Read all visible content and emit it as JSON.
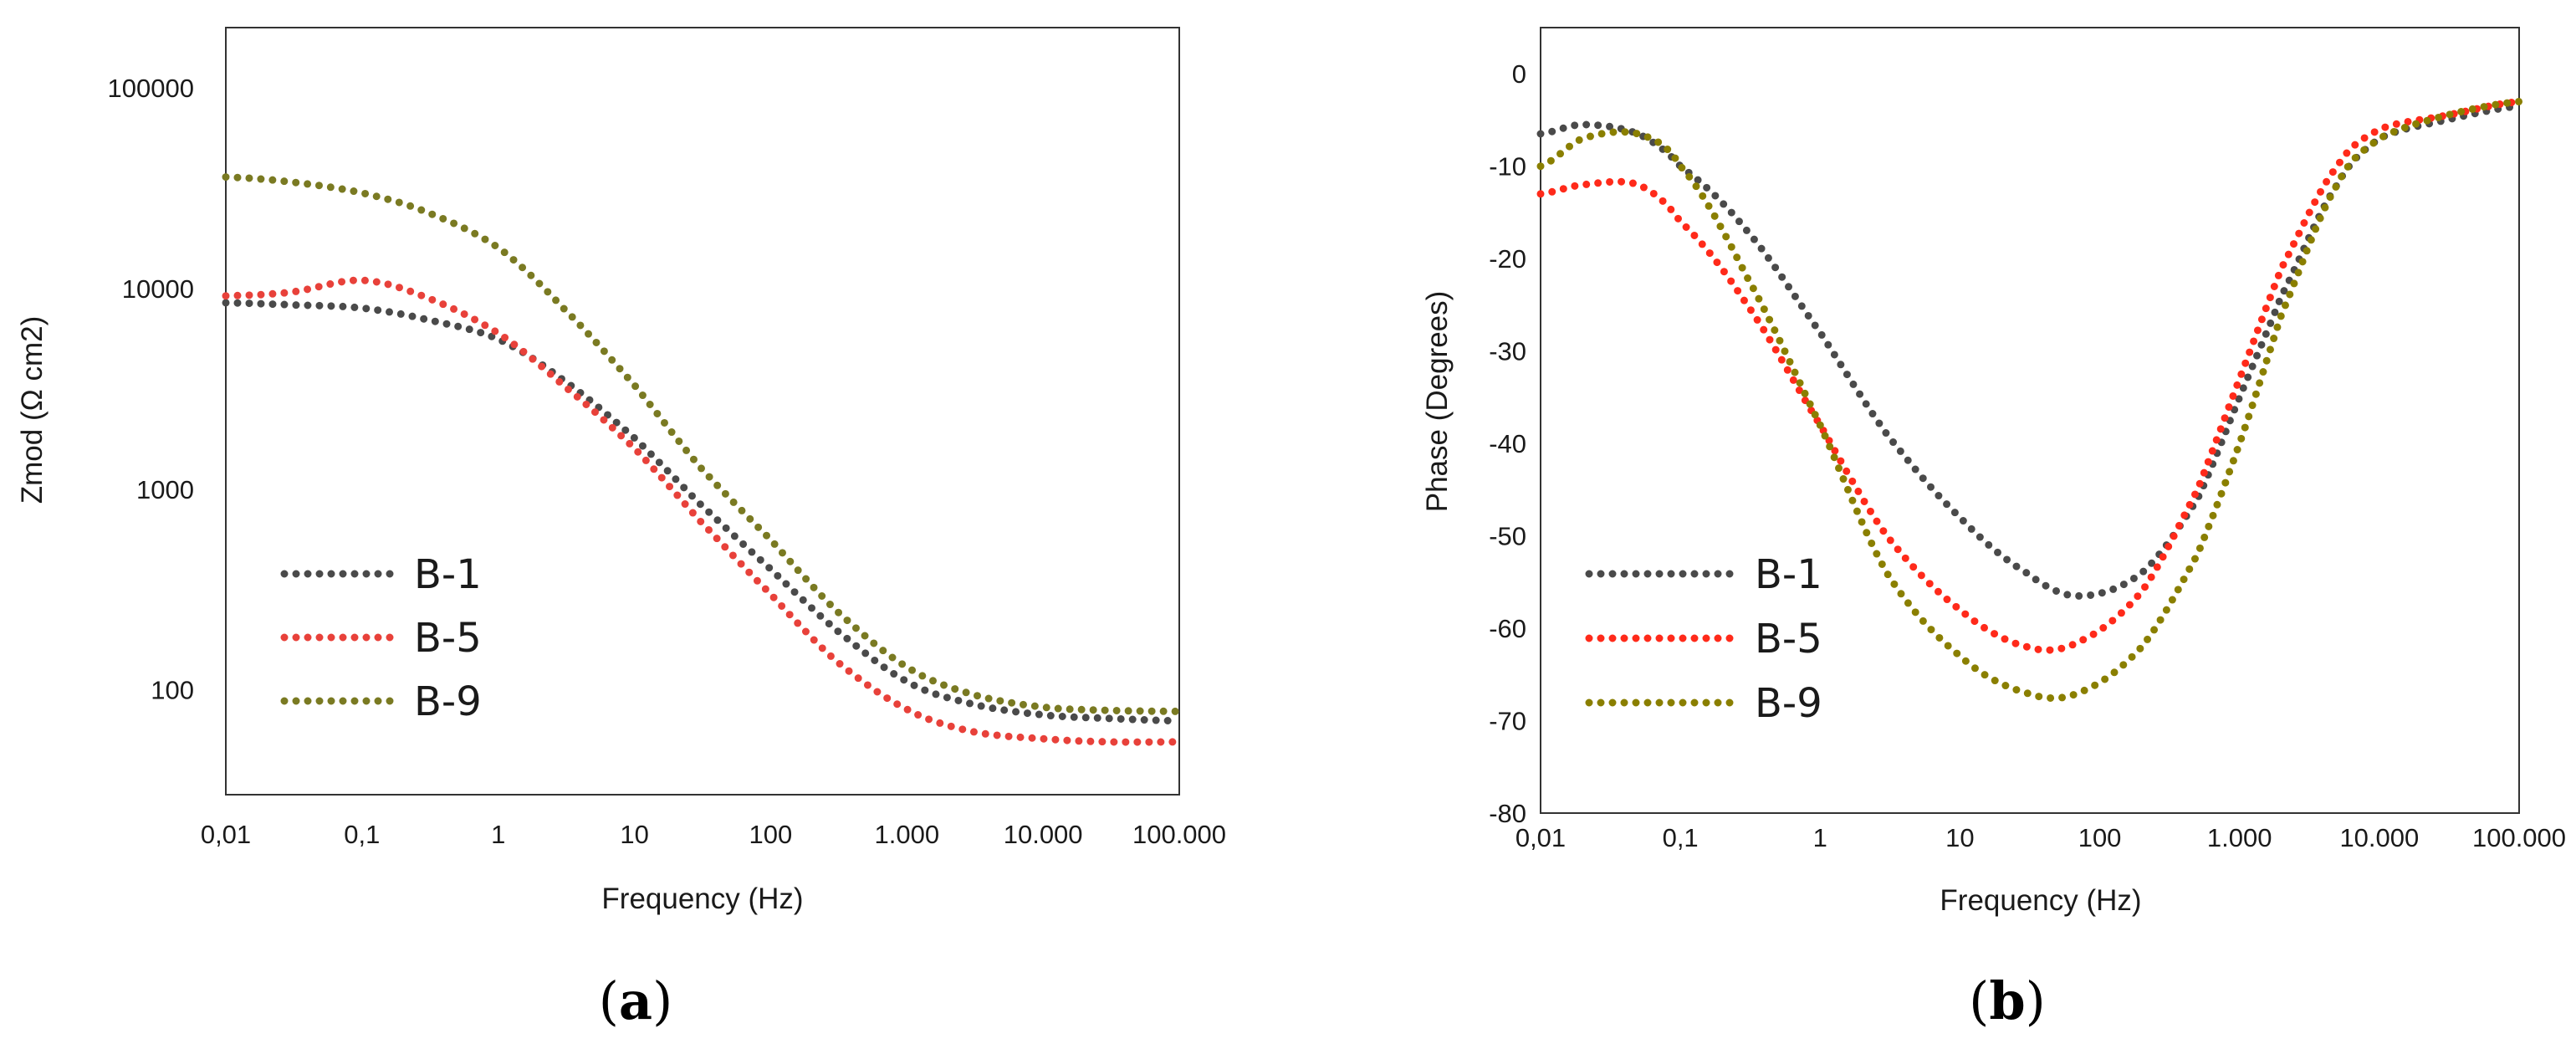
{
  "chart_data": [
    {
      "type": "line",
      "panel_label": "(a)",
      "panel_letter": "a",
      "xlabel": "Frequency (Hz)",
      "ylabel": "Zmod (Ω cm2)",
      "x_scale": "log",
      "y_scale": "log",
      "xlim": [
        0.01,
        100000
      ],
      "ylim": [
        30,
        200000
      ],
      "x_ticks": [
        {
          "value": 0.01,
          "label": "0,01"
        },
        {
          "value": 0.1,
          "label": "0,1"
        },
        {
          "value": 1,
          "label": "1"
        },
        {
          "value": 10,
          "label": "10"
        },
        {
          "value": 100,
          "label": "100"
        },
        {
          "value": 1000,
          "label": "1.000"
        },
        {
          "value": 10000,
          "label": "10.000"
        },
        {
          "value": 100000,
          "label": "100.000"
        }
      ],
      "y_ticks": [
        {
          "value": 100,
          "label": "100"
        },
        {
          "value": 1000,
          "label": "1000"
        },
        {
          "value": 10000,
          "label": "10000"
        },
        {
          "value": 100000,
          "label": "100000"
        }
      ],
      "grid": false,
      "legend_position": "bottom-left",
      "series": [
        {
          "name": "B-1",
          "color": "#4a4a4a",
          "x": [
            0.01,
            0.03,
            0.1,
            0.3,
            1,
            3,
            10,
            30,
            100,
            300,
            1000,
            3000,
            10000,
            30000,
            100000
          ],
          "values": [
            8500,
            8300,
            8000,
            7000,
            5600,
            3500,
            1800,
            850,
            400,
            200,
            110,
            85,
            75,
            72,
            70
          ]
        },
        {
          "name": "B-5",
          "color": "#e8413a",
          "x": [
            0.01,
            0.03,
            0.1,
            0.3,
            1,
            3,
            10,
            30,
            100,
            300,
            1000,
            3000,
            10000,
            30000,
            100000
          ],
          "values": [
            9200,
            9600,
            11000,
            9000,
            6000,
            3300,
            1600,
            700,
            300,
            140,
            80,
            62,
            57,
            55,
            55
          ]
        },
        {
          "name": "B-9",
          "color": "#7a7a22",
          "x": [
            0.01,
            0.03,
            0.1,
            0.3,
            1,
            3,
            10,
            30,
            100,
            300,
            1000,
            3000,
            10000,
            30000,
            100000
          ],
          "values": [
            36000,
            34000,
            30000,
            24000,
            16000,
            8000,
            3300,
            1300,
            560,
            250,
            130,
            95,
            82,
            79,
            78
          ]
        }
      ]
    },
    {
      "type": "line",
      "panel_label": "(b)",
      "panel_letter": "b",
      "xlabel": "Frequency (Hz)",
      "ylabel": "Phase (Degrees)",
      "x_scale": "log",
      "y_scale": "linear",
      "xlim": [
        0.01,
        100000
      ],
      "ylim": [
        -80,
        5
      ],
      "x_ticks": [
        {
          "value": 0.01,
          "label": "0,01"
        },
        {
          "value": 0.1,
          "label": "0,1"
        },
        {
          "value": 1,
          "label": "1"
        },
        {
          "value": 10,
          "label": "10"
        },
        {
          "value": 100,
          "label": "100"
        },
        {
          "value": 1000,
          "label": "1.000"
        },
        {
          "value": 10000,
          "label": "10.000"
        },
        {
          "value": 100000,
          "label": "100.000"
        }
      ],
      "y_ticks": [
        {
          "value": 0,
          "label": "0"
        },
        {
          "value": -10,
          "label": "-10"
        },
        {
          "value": -20,
          "label": "-20"
        },
        {
          "value": -30,
          "label": "-30"
        },
        {
          "value": -40,
          "label": "-40"
        },
        {
          "value": -50,
          "label": "-50"
        },
        {
          "value": -60,
          "label": "-60"
        },
        {
          "value": -70,
          "label": "-70"
        },
        {
          "value": -80,
          "label": "-80"
        }
      ],
      "grid": false,
      "legend_position": "bottom-left",
      "series": [
        {
          "name": "B-1",
          "color": "#4a4a4a",
          "x": [
            0.01,
            0.02,
            0.05,
            0.1,
            0.3,
            1,
            3,
            10,
            30,
            70,
            200,
            500,
            1000,
            2000,
            5000,
            10000,
            30000,
            100000
          ],
          "values": [
            -6.5,
            -5.5,
            -6.5,
            -10,
            -17,
            -28,
            -39,
            -48,
            -54,
            -56.5,
            -54,
            -46,
            -35,
            -24,
            -12,
            -7,
            -5,
            -3.5
          ]
        },
        {
          "name": "B-5",
          "color": "#ff2a1a",
          "x": [
            0.01,
            0.02,
            0.05,
            0.1,
            0.3,
            1,
            3,
            10,
            30,
            70,
            200,
            500,
            1000,
            2000,
            5000,
            10000,
            30000,
            100000
          ],
          "values": [
            -13,
            -12,
            -12,
            -16,
            -25,
            -38,
            -50,
            -58,
            -62,
            -61.5,
            -56,
            -45,
            -33,
            -21,
            -10,
            -6,
            -4.5,
            -3
          ]
        },
        {
          "name": "B-9",
          "color": "#8a7f00",
          "x": [
            0.01,
            0.02,
            0.05,
            0.1,
            0.3,
            1,
            3,
            10,
            30,
            70,
            200,
            500,
            1000,
            2000,
            5000,
            10000,
            30000,
            100000
          ],
          "values": [
            -10,
            -7,
            -6.5,
            -10,
            -22,
            -38,
            -54,
            -63,
            -67,
            -67,
            -62,
            -52,
            -40,
            -26,
            -12,
            -7,
            -4.5,
            -3
          ]
        }
      ]
    }
  ]
}
